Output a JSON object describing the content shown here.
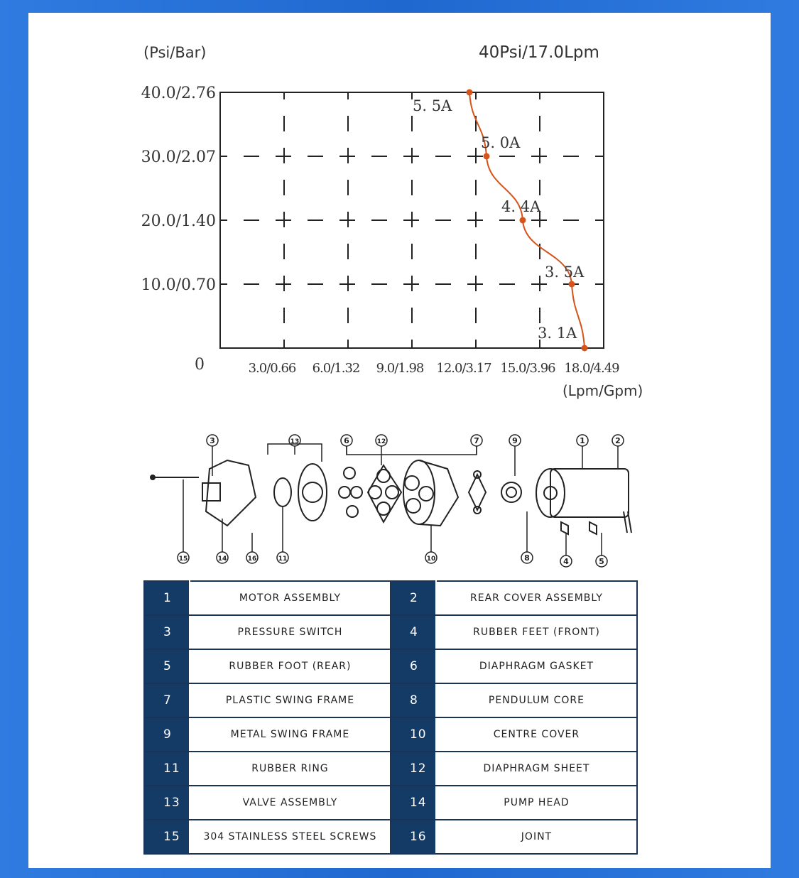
{
  "chart_data": {
    "type": "line",
    "ylabel": "(Psi/Bar)",
    "xlabel": "(Lpm/Gpm)",
    "title": "40Psi/17.0Lpm",
    "y_ticks": [
      "0",
      "10.0/0.70",
      "20.0/1.40",
      "30.0/2.07",
      "40.0/2.76"
    ],
    "x_ticks": [
      "3.0/0.66",
      "6.0/1.32",
      "9.0/1.98",
      "12.0/3.17",
      "15.0/3.96",
      "18.0/4.49"
    ],
    "xlim": [
      0,
      18
    ],
    "ylim": [
      0,
      40
    ],
    "grid": true,
    "series": [
      {
        "color": "#d4541c",
        "points": [
          {
            "x": 11.7,
            "y": 40,
            "label": "5. 5A"
          },
          {
            "x": 12.5,
            "y": 30,
            "label": "5. 0A"
          },
          {
            "x": 14.2,
            "y": 20,
            "label": "4. 4A"
          },
          {
            "x": 16.5,
            "y": 10,
            "label": "3. 5A"
          },
          {
            "x": 17.1,
            "y": 0,
            "label": "3. 1A"
          }
        ]
      }
    ]
  },
  "diagram": {
    "callouts": [
      "1",
      "2",
      "3",
      "4",
      "5",
      "6",
      "7",
      "8",
      "9",
      "10",
      "11",
      "12",
      "13",
      "14",
      "15",
      "16"
    ]
  },
  "parts": [
    {
      "n": "1",
      "name": "MOTOR ASSEMBLY"
    },
    {
      "n": "2",
      "name": "REAR COVER ASSEMBLY"
    },
    {
      "n": "3",
      "name": "PRESSURE SWITCH"
    },
    {
      "n": "4",
      "name": "RUBBER FEET (FRONT)"
    },
    {
      "n": "5",
      "name": "RUBBER FOOT (REAR)"
    },
    {
      "n": "6",
      "name": "DIAPHRAGM GASKET"
    },
    {
      "n": "7",
      "name": "PLASTIC SWING FRAME"
    },
    {
      "n": "8",
      "name": "PENDULUM CORE"
    },
    {
      "n": "9",
      "name": "METAL SWING FRAME"
    },
    {
      "n": "10",
      "name": "CENTRE COVER"
    },
    {
      "n": "11",
      "name": "RUBBER RING"
    },
    {
      "n": "12",
      "name": "DIAPHRAGM SHEET"
    },
    {
      "n": "13",
      "name": "VALVE ASSEMBLY"
    },
    {
      "n": "14",
      "name": "PUMP HEAD"
    },
    {
      "n": "15",
      "name": "304 STAINLESS STEEL SCREWS"
    },
    {
      "n": "16",
      "name": "JOINT"
    }
  ]
}
